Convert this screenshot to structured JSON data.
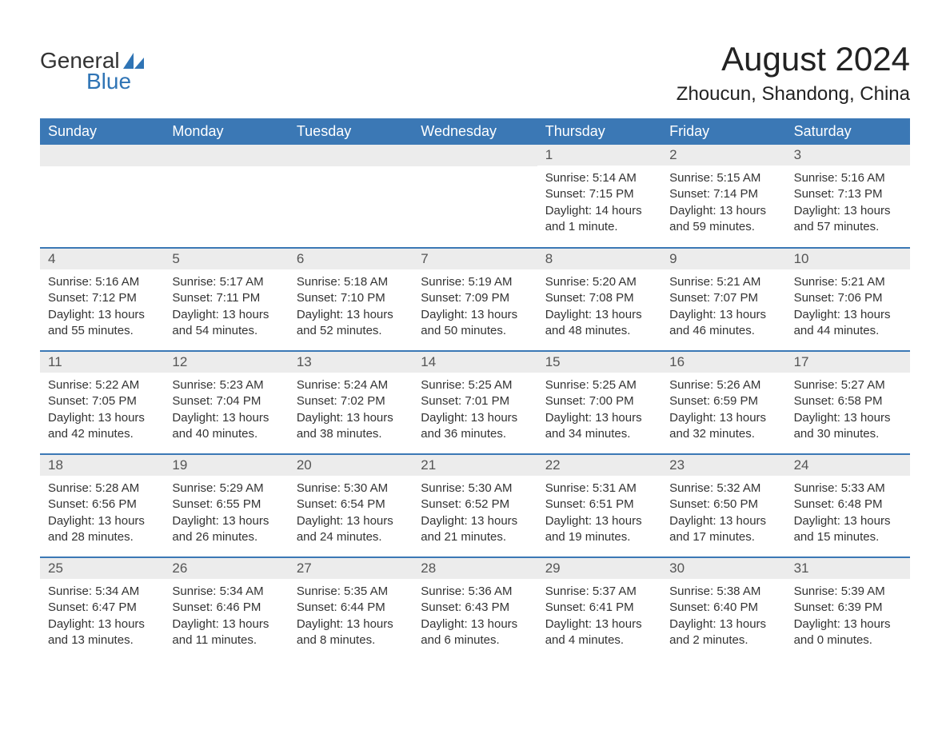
{
  "logo": {
    "word1": "General",
    "word2": "Blue",
    "icon_color": "#2f74b5"
  },
  "title": "August 2024",
  "location": "Zhoucun, Shandong, China",
  "colors": {
    "header_bg": "#3b78b5",
    "header_text": "#ffffff",
    "daynum_bg": "#ececec",
    "border": "#3b78b5",
    "body_text": "#333333"
  },
  "weekdays": [
    "Sunday",
    "Monday",
    "Tuesday",
    "Wednesday",
    "Thursday",
    "Friday",
    "Saturday"
  ],
  "weeks": [
    [
      null,
      null,
      null,
      null,
      {
        "n": "1",
        "sunrise": "Sunrise: 5:14 AM",
        "sunset": "Sunset: 7:15 PM",
        "d1": "Daylight: 14 hours",
        "d2": "and 1 minute."
      },
      {
        "n": "2",
        "sunrise": "Sunrise: 5:15 AM",
        "sunset": "Sunset: 7:14 PM",
        "d1": "Daylight: 13 hours",
        "d2": "and 59 minutes."
      },
      {
        "n": "3",
        "sunrise": "Sunrise: 5:16 AM",
        "sunset": "Sunset: 7:13 PM",
        "d1": "Daylight: 13 hours",
        "d2": "and 57 minutes."
      }
    ],
    [
      {
        "n": "4",
        "sunrise": "Sunrise: 5:16 AM",
        "sunset": "Sunset: 7:12 PM",
        "d1": "Daylight: 13 hours",
        "d2": "and 55 minutes."
      },
      {
        "n": "5",
        "sunrise": "Sunrise: 5:17 AM",
        "sunset": "Sunset: 7:11 PM",
        "d1": "Daylight: 13 hours",
        "d2": "and 54 minutes."
      },
      {
        "n": "6",
        "sunrise": "Sunrise: 5:18 AM",
        "sunset": "Sunset: 7:10 PM",
        "d1": "Daylight: 13 hours",
        "d2": "and 52 minutes."
      },
      {
        "n": "7",
        "sunrise": "Sunrise: 5:19 AM",
        "sunset": "Sunset: 7:09 PM",
        "d1": "Daylight: 13 hours",
        "d2": "and 50 minutes."
      },
      {
        "n": "8",
        "sunrise": "Sunrise: 5:20 AM",
        "sunset": "Sunset: 7:08 PM",
        "d1": "Daylight: 13 hours",
        "d2": "and 48 minutes."
      },
      {
        "n": "9",
        "sunrise": "Sunrise: 5:21 AM",
        "sunset": "Sunset: 7:07 PM",
        "d1": "Daylight: 13 hours",
        "d2": "and 46 minutes."
      },
      {
        "n": "10",
        "sunrise": "Sunrise: 5:21 AM",
        "sunset": "Sunset: 7:06 PM",
        "d1": "Daylight: 13 hours",
        "d2": "and 44 minutes."
      }
    ],
    [
      {
        "n": "11",
        "sunrise": "Sunrise: 5:22 AM",
        "sunset": "Sunset: 7:05 PM",
        "d1": "Daylight: 13 hours",
        "d2": "and 42 minutes."
      },
      {
        "n": "12",
        "sunrise": "Sunrise: 5:23 AM",
        "sunset": "Sunset: 7:04 PM",
        "d1": "Daylight: 13 hours",
        "d2": "and 40 minutes."
      },
      {
        "n": "13",
        "sunrise": "Sunrise: 5:24 AM",
        "sunset": "Sunset: 7:02 PM",
        "d1": "Daylight: 13 hours",
        "d2": "and 38 minutes."
      },
      {
        "n": "14",
        "sunrise": "Sunrise: 5:25 AM",
        "sunset": "Sunset: 7:01 PM",
        "d1": "Daylight: 13 hours",
        "d2": "and 36 minutes."
      },
      {
        "n": "15",
        "sunrise": "Sunrise: 5:25 AM",
        "sunset": "Sunset: 7:00 PM",
        "d1": "Daylight: 13 hours",
        "d2": "and 34 minutes."
      },
      {
        "n": "16",
        "sunrise": "Sunrise: 5:26 AM",
        "sunset": "Sunset: 6:59 PM",
        "d1": "Daylight: 13 hours",
        "d2": "and 32 minutes."
      },
      {
        "n": "17",
        "sunrise": "Sunrise: 5:27 AM",
        "sunset": "Sunset: 6:58 PM",
        "d1": "Daylight: 13 hours",
        "d2": "and 30 minutes."
      }
    ],
    [
      {
        "n": "18",
        "sunrise": "Sunrise: 5:28 AM",
        "sunset": "Sunset: 6:56 PM",
        "d1": "Daylight: 13 hours",
        "d2": "and 28 minutes."
      },
      {
        "n": "19",
        "sunrise": "Sunrise: 5:29 AM",
        "sunset": "Sunset: 6:55 PM",
        "d1": "Daylight: 13 hours",
        "d2": "and 26 minutes."
      },
      {
        "n": "20",
        "sunrise": "Sunrise: 5:30 AM",
        "sunset": "Sunset: 6:54 PM",
        "d1": "Daylight: 13 hours",
        "d2": "and 24 minutes."
      },
      {
        "n": "21",
        "sunrise": "Sunrise: 5:30 AM",
        "sunset": "Sunset: 6:52 PM",
        "d1": "Daylight: 13 hours",
        "d2": "and 21 minutes."
      },
      {
        "n": "22",
        "sunrise": "Sunrise: 5:31 AM",
        "sunset": "Sunset: 6:51 PM",
        "d1": "Daylight: 13 hours",
        "d2": "and 19 minutes."
      },
      {
        "n": "23",
        "sunrise": "Sunrise: 5:32 AM",
        "sunset": "Sunset: 6:50 PM",
        "d1": "Daylight: 13 hours",
        "d2": "and 17 minutes."
      },
      {
        "n": "24",
        "sunrise": "Sunrise: 5:33 AM",
        "sunset": "Sunset: 6:48 PM",
        "d1": "Daylight: 13 hours",
        "d2": "and 15 minutes."
      }
    ],
    [
      {
        "n": "25",
        "sunrise": "Sunrise: 5:34 AM",
        "sunset": "Sunset: 6:47 PM",
        "d1": "Daylight: 13 hours",
        "d2": "and 13 minutes."
      },
      {
        "n": "26",
        "sunrise": "Sunrise: 5:34 AM",
        "sunset": "Sunset: 6:46 PM",
        "d1": "Daylight: 13 hours",
        "d2": "and 11 minutes."
      },
      {
        "n": "27",
        "sunrise": "Sunrise: 5:35 AM",
        "sunset": "Sunset: 6:44 PM",
        "d1": "Daylight: 13 hours",
        "d2": "and 8 minutes."
      },
      {
        "n": "28",
        "sunrise": "Sunrise: 5:36 AM",
        "sunset": "Sunset: 6:43 PM",
        "d1": "Daylight: 13 hours",
        "d2": "and 6 minutes."
      },
      {
        "n": "29",
        "sunrise": "Sunrise: 5:37 AM",
        "sunset": "Sunset: 6:41 PM",
        "d1": "Daylight: 13 hours",
        "d2": "and 4 minutes."
      },
      {
        "n": "30",
        "sunrise": "Sunrise: 5:38 AM",
        "sunset": "Sunset: 6:40 PM",
        "d1": "Daylight: 13 hours",
        "d2": "and 2 minutes."
      },
      {
        "n": "31",
        "sunrise": "Sunrise: 5:39 AM",
        "sunset": "Sunset: 6:39 PM",
        "d1": "Daylight: 13 hours",
        "d2": "and 0 minutes."
      }
    ]
  ]
}
